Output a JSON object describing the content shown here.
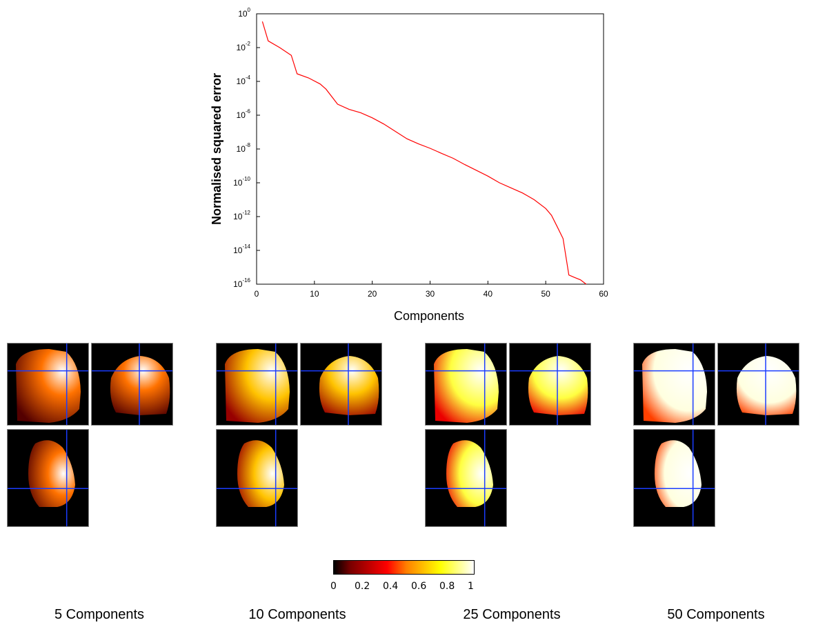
{
  "chart_data": {
    "type": "line",
    "title": "",
    "xlabel": "Components",
    "ylabel": "Normalised squared error",
    "xlim": [
      0,
      60
    ],
    "ylim": [
      1e-16,
      1
    ],
    "yscale": "log",
    "xticks": [
      0,
      10,
      20,
      30,
      40,
      50,
      60
    ],
    "yticks": [
      0,
      -2,
      -4,
      -6,
      -8,
      -10,
      -12,
      -14,
      -16
    ],
    "grid": false,
    "series": [
      {
        "color": "#ff0000",
        "x": [
          1,
          2,
          4,
          6,
          7,
          9,
          11,
          12,
          14,
          16,
          18,
          20,
          22,
          24,
          26,
          28,
          30,
          32,
          34,
          36,
          38,
          40,
          42,
          44,
          46,
          48,
          50,
          51,
          52,
          53,
          54,
          55,
          56,
          57
        ],
        "y": [
          0.35,
          0.025,
          0.01,
          0.0035,
          0.00028,
          0.00016,
          7e-05,
          3.5e-05,
          4.5e-06,
          2.2e-06,
          1.4e-06,
          7e-07,
          3e-07,
          1.1e-07,
          4e-08,
          2e-08,
          1.1e-08,
          5.5e-09,
          2.8e-09,
          1.2e-09,
          5.5e-10,
          2.5e-10,
          1e-10,
          5e-11,
          2.5e-11,
          1e-11,
          3e-12,
          1.2e-12,
          2.5e-13,
          5e-14,
          3.5e-16,
          2.5e-16,
          1.8e-16,
          1e-16
        ]
      }
    ]
  },
  "colorbar": {
    "colormap": "hot",
    "ticks": [
      "0",
      "0.2",
      "0.4",
      "0.6",
      "0.8",
      "1"
    ]
  },
  "panels": [
    {
      "caption": "5 Components",
      "intensity": 0.25
    },
    {
      "caption": "10 Components",
      "intensity": 0.45
    },
    {
      "caption": "25 Components",
      "intensity": 0.7
    },
    {
      "caption": "50 Components",
      "intensity": 0.95
    }
  ]
}
